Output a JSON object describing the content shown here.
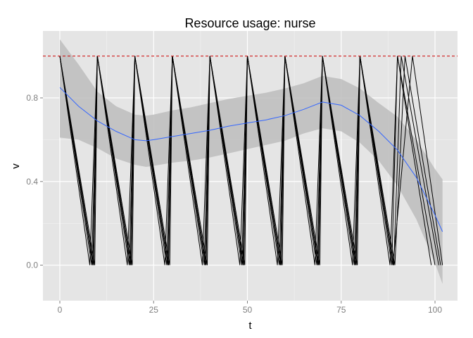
{
  "chart_data": {
    "type": "line",
    "title": "Resource usage: nurse",
    "xlabel": "t",
    "ylabel": "v",
    "xlim": [
      -4.5,
      106
    ],
    "ylim": [
      -0.17,
      1.12
    ],
    "x_ticks": [
      0,
      25,
      50,
      75,
      100
    ],
    "x_tick_labels": [
      "0",
      "25",
      "50",
      "75",
      "100"
    ],
    "y_ticks": [
      0.0,
      0.4,
      0.8
    ],
    "y_tick_labels": [
      "0.0",
      "0.4",
      "0.8"
    ],
    "grid": true,
    "panel_color": "#e5e5e5",
    "grid_color": "#ffffff",
    "reference_line": {
      "y": 1.0,
      "color": "#cc0000",
      "style": "dashed"
    },
    "series": [
      {
        "peaks": [
          0,
          10,
          20,
          30,
          40,
          50,
          60,
          70,
          80,
          90
        ],
        "troughs": [
          8,
          18,
          28,
          38,
          48,
          58,
          68,
          78,
          88,
          99
        ]
      },
      {
        "peaks": [
          0,
          10,
          20,
          30,
          40,
          50,
          60,
          70,
          80,
          90
        ],
        "troughs": [
          8.5,
          18.5,
          28.5,
          38.5,
          48.5,
          58.5,
          68.5,
          78.5,
          88.5,
          100
        ]
      },
      {
        "peaks": [
          0,
          10,
          20,
          30,
          40,
          50,
          60,
          70,
          80,
          91
        ],
        "troughs": [
          9,
          19,
          29,
          39,
          49,
          59,
          69,
          79,
          89,
          101
        ]
      },
      {
        "peaks": [
          0,
          10,
          20,
          30,
          40,
          50,
          60,
          70,
          80,
          92
        ],
        "troughs": [
          9.3,
          19.3,
          29.3,
          39.3,
          49.3,
          59.3,
          69.3,
          79.3,
          89.3,
          101.5
        ]
      },
      {
        "peaks": [
          0,
          10,
          20,
          30,
          40,
          50,
          60,
          70,
          80,
          94
        ],
        "troughs": [
          8.8,
          18.8,
          28.8,
          38.8,
          48.8,
          58.8,
          68.8,
          78.8,
          88.8,
          102
        ]
      }
    ],
    "series_color": "#000000",
    "smooth": {
      "color": "#3366ff",
      "band_color": "#bdbdbd",
      "x": [
        0,
        5,
        10,
        15,
        20,
        23,
        25,
        30,
        35,
        40,
        45,
        50,
        55,
        60,
        65,
        70,
        75,
        80,
        85,
        90,
        95,
        100,
        102
      ],
      "y": [
        0.85,
        0.76,
        0.69,
        0.64,
        0.6,
        0.595,
        0.6,
        0.615,
        0.63,
        0.645,
        0.665,
        0.68,
        0.695,
        0.715,
        0.745,
        0.78,
        0.765,
        0.715,
        0.64,
        0.55,
        0.42,
        0.24,
        0.16
      ],
      "lower": [
        0.61,
        0.6,
        0.56,
        0.51,
        0.48,
        0.47,
        0.475,
        0.49,
        0.5,
        0.515,
        0.535,
        0.555,
        0.575,
        0.595,
        0.63,
        0.655,
        0.64,
        0.585,
        0.5,
        0.38,
        0.22,
        0.01,
        -0.09
      ],
      "upper": [
        1.08,
        0.96,
        0.83,
        0.76,
        0.72,
        0.715,
        0.72,
        0.74,
        0.755,
        0.775,
        0.795,
        0.81,
        0.825,
        0.845,
        0.87,
        0.905,
        0.89,
        0.845,
        0.775,
        0.71,
        0.6,
        0.46,
        0.41
      ]
    }
  }
}
